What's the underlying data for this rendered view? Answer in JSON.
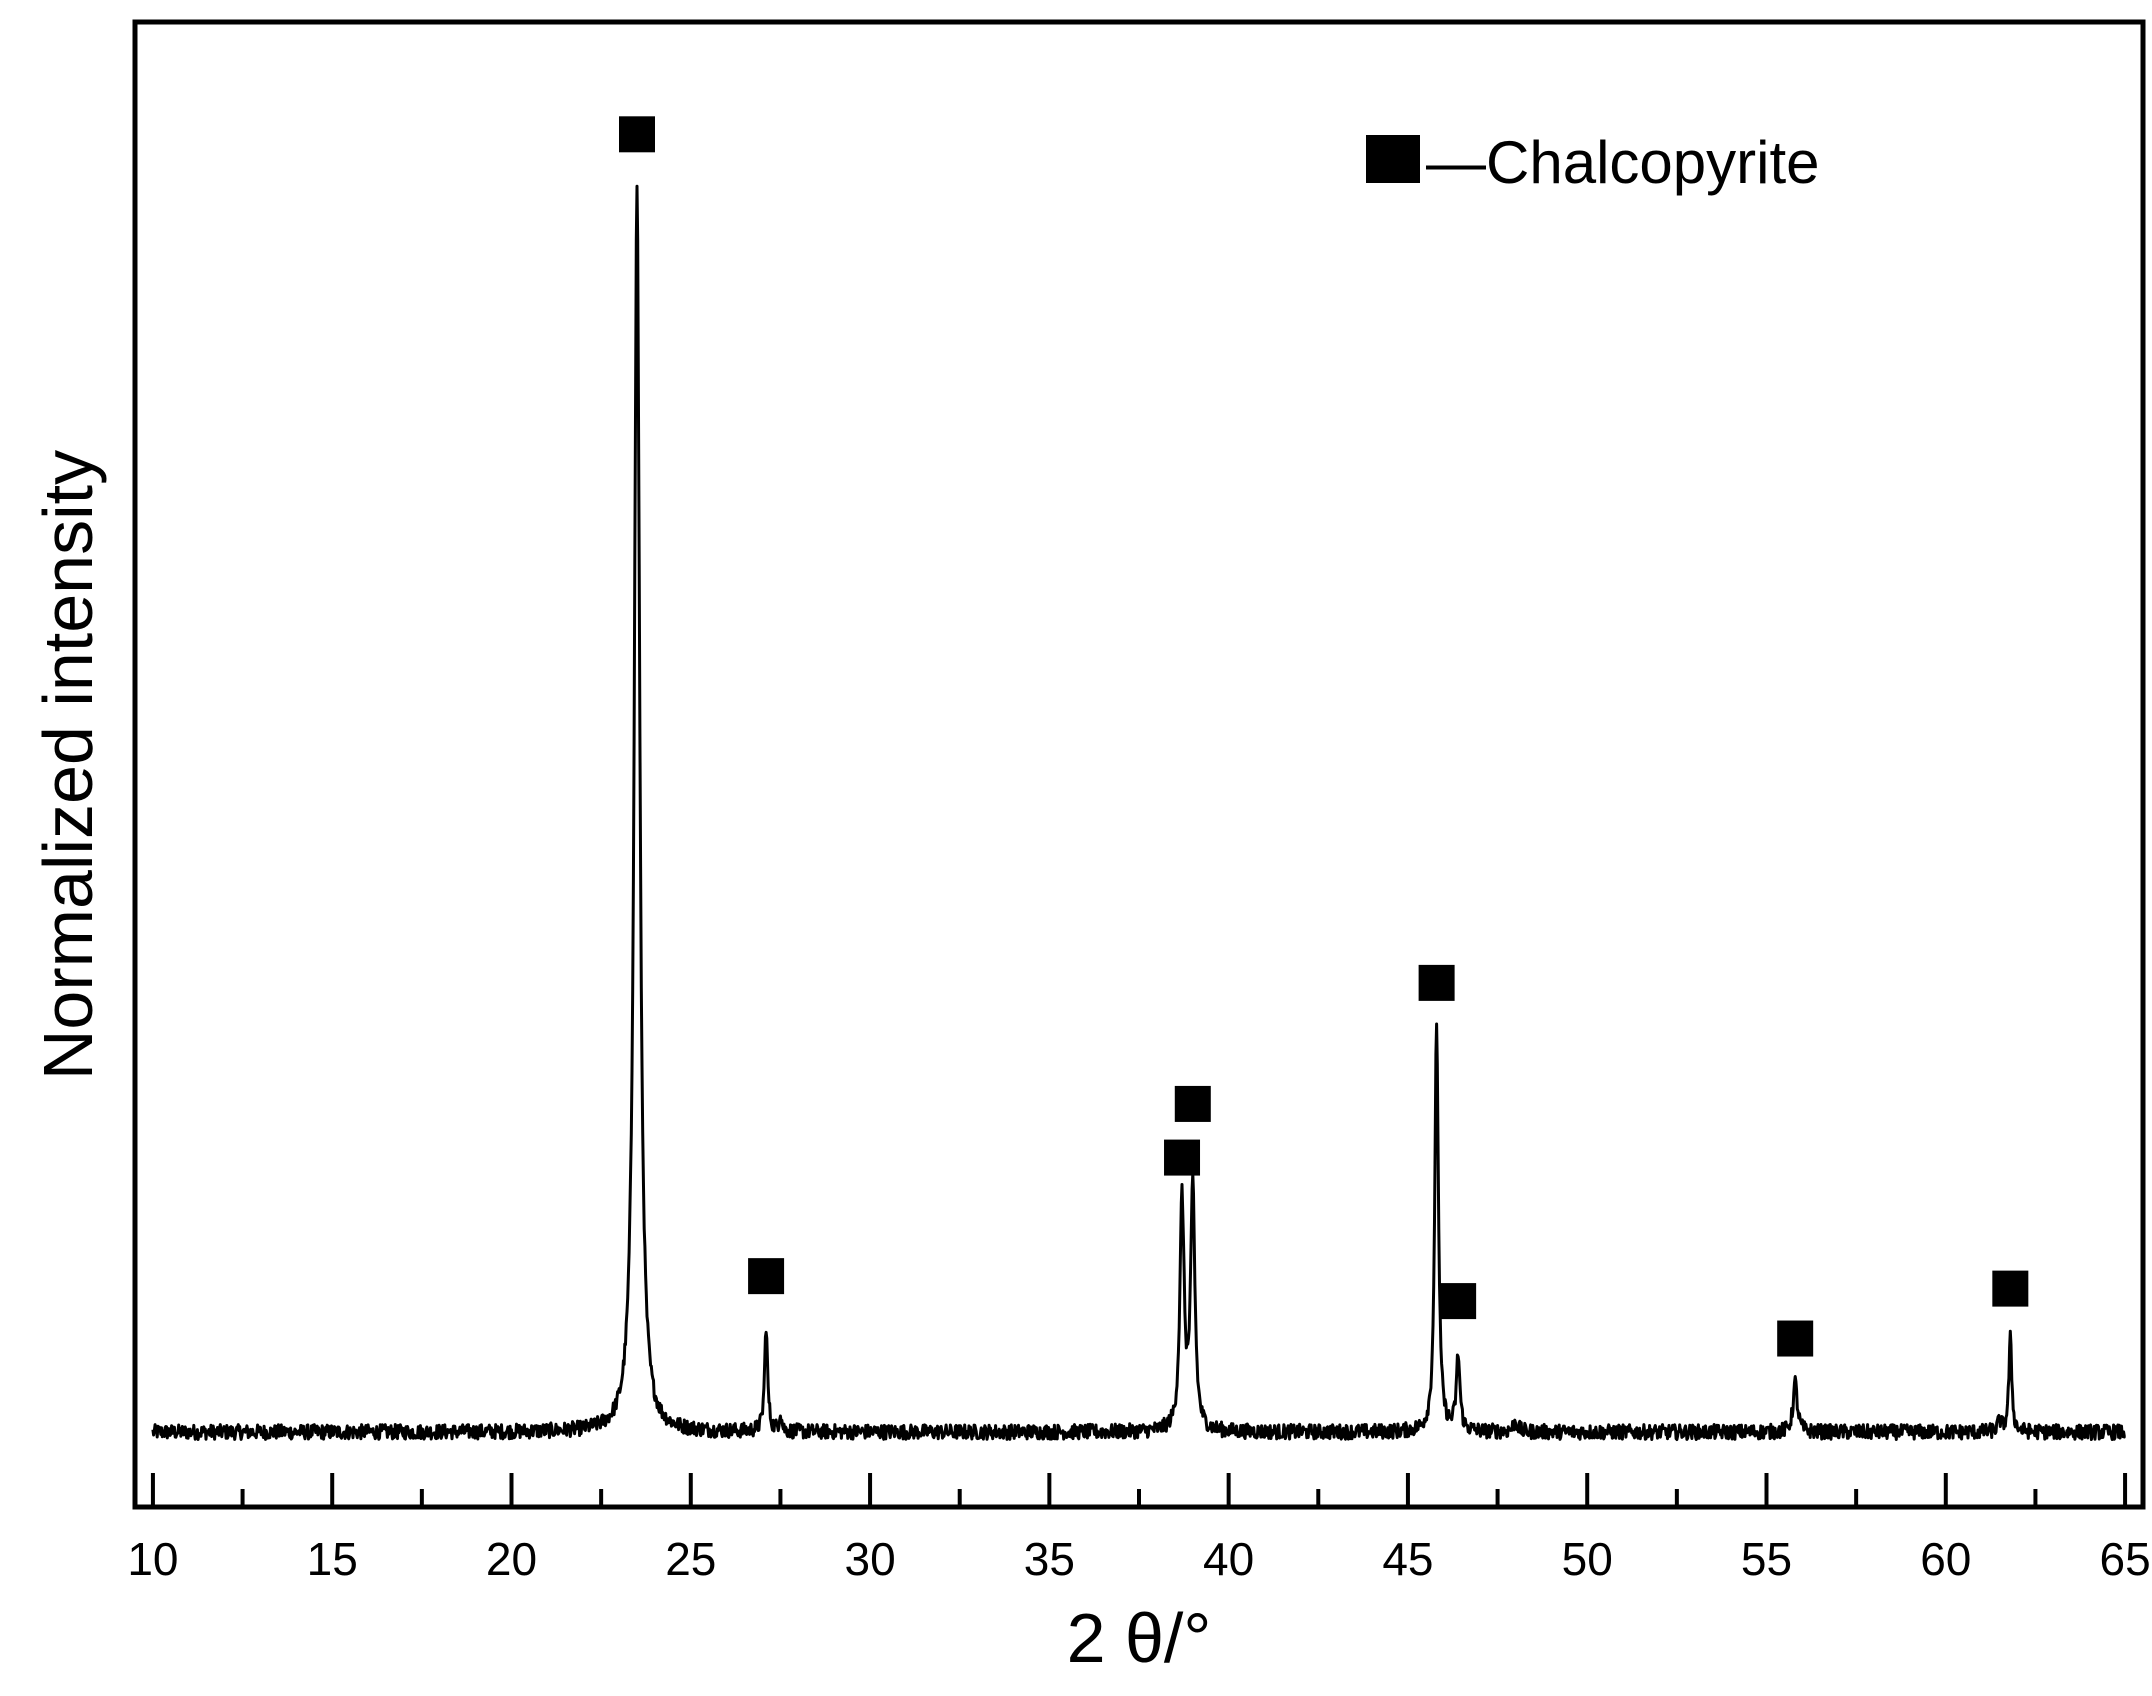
{
  "chart_data": {
    "type": "line",
    "title": "",
    "xlabel": "2 θ/°",
    "ylabel": "Normalized intensity",
    "xlim": [
      9.5,
      65.5
    ],
    "ylim": [
      -0.06,
      1.13
    ],
    "x_ticks": [
      10,
      15,
      20,
      25,
      30,
      35,
      40,
      45,
      50,
      55,
      60,
      65
    ],
    "x_ticks_minor": [
      12.5,
      17.5,
      22.5,
      27.5,
      32.5,
      37.5,
      42.5,
      47.5,
      52.5,
      57.5,
      62.5
    ],
    "y_ticks_shown": false,
    "grid": false,
    "legend": {
      "placement": "top-right",
      "entries": [
        {
          "marker": "filled-square",
          "label": "—Chalcopyrite"
        }
      ]
    },
    "baseline": 0.0,
    "noise_amplitude": 0.006,
    "series": [
      {
        "peaks": [
          {
            "x": 23.5,
            "y": 1.0,
            "width": 0.09
          },
          {
            "x": 27.1,
            "y": 0.085,
            "width": 0.05
          },
          {
            "x": 27.5,
            "y": 0.015,
            "width": 0.04
          },
          {
            "x": 38.7,
            "y": 0.185,
            "width": 0.07
          },
          {
            "x": 39.0,
            "y": 0.195,
            "width": 0.07
          },
          {
            "x": 45.8,
            "y": 0.33,
            "width": 0.06
          },
          {
            "x": 46.4,
            "y": 0.06,
            "width": 0.06
          },
          {
            "x": 48.0,
            "y": 0.008,
            "width": 0.08
          },
          {
            "x": 55.8,
            "y": 0.04,
            "width": 0.07
          },
          {
            "x": 61.5,
            "y": 0.008,
            "width": 0.06
          },
          {
            "x": 61.8,
            "y": 0.075,
            "width": 0.05
          }
        ]
      }
    ],
    "phase_markers": [
      {
        "x": 23.5,
        "y": 1.04
      },
      {
        "x": 27.1,
        "y": 0.125
      },
      {
        "x": 38.7,
        "y": 0.22
      },
      {
        "x": 39.0,
        "y": 0.263
      },
      {
        "x": 45.8,
        "y": 0.36
      },
      {
        "x": 46.4,
        "y": 0.105
      },
      {
        "x": 55.8,
        "y": 0.075
      },
      {
        "x": 61.8,
        "y": 0.115
      }
    ],
    "colors": {
      "line": "#000000",
      "marker": "#000000",
      "axis": "#000000"
    }
  }
}
